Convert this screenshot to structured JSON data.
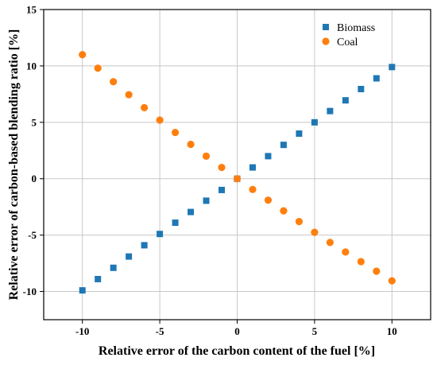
{
  "chart_data": {
    "type": "scatter",
    "title": "",
    "xlabel": "Relative error of the carbon content of the fuel [%]",
    "ylabel": "Relative error of carbon-based blending ratio [%]",
    "xlim": [
      -12.5,
      12.5
    ],
    "ylim": [
      -12.5,
      15
    ],
    "xticks": [
      -10,
      -5,
      0,
      5,
      10
    ],
    "yticks": [
      -10,
      -5,
      0,
      5,
      10,
      15
    ],
    "grid": true,
    "legend_position": "top-right",
    "series": [
      {
        "name": "Biomass",
        "marker": "square",
        "color": "#1f77b4",
        "x": [
          -10,
          -9,
          -8,
          -7,
          -6,
          -5,
          -4,
          -3,
          -2,
          -1,
          0,
          1,
          2,
          3,
          4,
          5,
          6,
          7,
          8,
          9,
          10
        ],
        "y": [
          -9.9,
          -8.9,
          -7.9,
          -6.9,
          -5.9,
          -4.9,
          -3.9,
          -2.95,
          -1.95,
          -1.0,
          0,
          1.0,
          2.0,
          3.0,
          4.0,
          5.0,
          6.0,
          6.95,
          7.95,
          8.9,
          9.9
        ]
      },
      {
        "name": "Coal",
        "marker": "circle",
        "color": "#ff7f0e",
        "x": [
          -10,
          -9,
          -8,
          -7,
          -6,
          -5,
          -4,
          -3,
          -2,
          -1,
          0,
          1,
          2,
          3,
          4,
          5,
          6,
          7,
          8,
          9,
          10
        ],
        "y": [
          11.0,
          9.8,
          8.6,
          7.45,
          6.3,
          5.2,
          4.1,
          3.05,
          2.0,
          1.0,
          0,
          -0.95,
          -1.9,
          -2.85,
          -3.8,
          -4.75,
          -5.65,
          -6.5,
          -7.35,
          -8.2,
          -9.05
        ]
      }
    ]
  }
}
